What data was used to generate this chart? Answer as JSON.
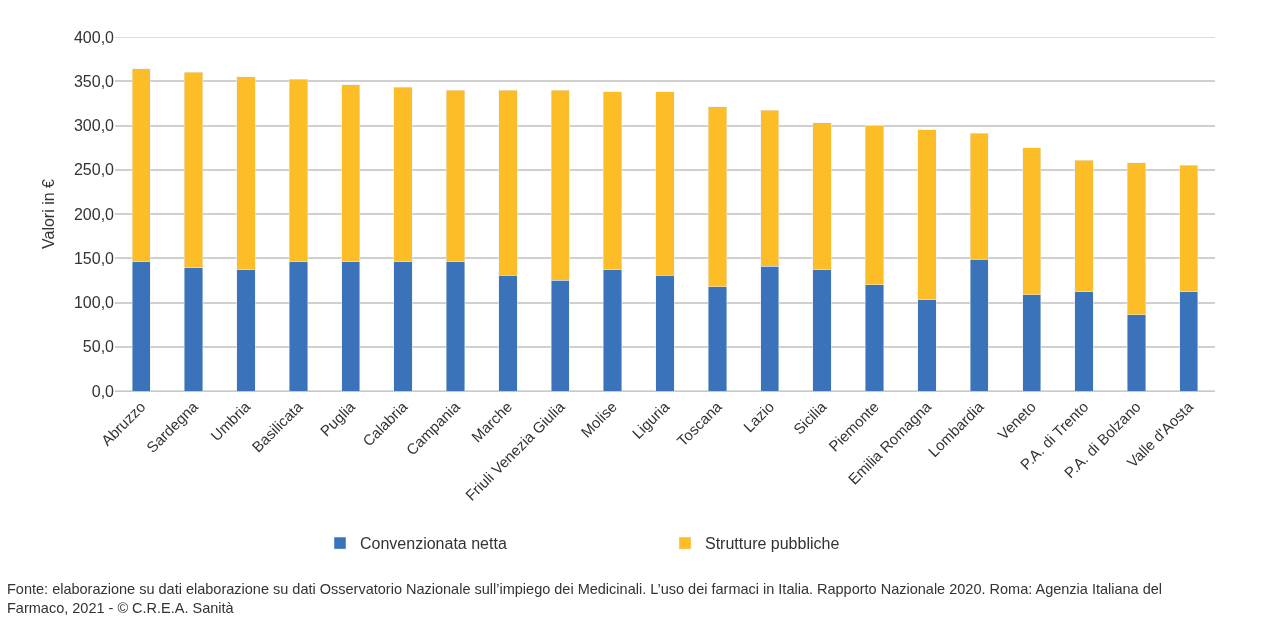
{
  "chart_data": {
    "type": "bar",
    "stacked": true,
    "ylabel": "Valori in €",
    "categories": [
      "Abruzzo",
      "Sardegna",
      "Umbria",
      "Basilicata",
      "Puglia",
      "Calabria",
      "Campania",
      "Marche",
      "Friuli Venezia Giulia",
      "Molise",
      "Liguria",
      "Toscana",
      "Lazio",
      "Sicilia",
      "Piemonte",
      "Emilia Romagna",
      "Lombardia",
      "Veneto",
      "P.A. di Trento",
      "P.A. di Bolzano",
      "Valle d'Aosta"
    ],
    "series": [
      {
        "name": "Convenzionata netta",
        "color": "#3a73b9",
        "values": [
          146,
          139,
          137,
          146,
          146,
          146,
          146,
          131,
          125,
          137,
          131,
          118,
          141,
          137,
          120,
          103,
          149,
          109,
          112,
          86,
          112
        ]
      },
      {
        "name": "Strutture pubbliche",
        "color": "#fdbd26",
        "values": [
          218,
          221,
          218,
          206,
          200,
          197,
          194,
          209,
          215,
          201,
          207,
          203,
          176,
          166,
          180,
          192,
          142,
          166,
          149,
          172,
          143
        ]
      }
    ],
    "ylim": [
      0,
      400
    ],
    "yticks": [
      {
        "value": 0,
        "label": "0,0"
      },
      {
        "value": 50,
        "label": "50,0"
      },
      {
        "value": 100,
        "label": "100,0"
      },
      {
        "value": 150,
        "label": "150,0"
      },
      {
        "value": 200,
        "label": "200,0"
      },
      {
        "value": 250,
        "label": "250,0"
      },
      {
        "value": 300,
        "label": "300,0"
      },
      {
        "value": 350,
        "label": "350,0"
      },
      {
        "value": 400,
        "label": "400,0"
      }
    ],
    "grid": "y",
    "legend": "bottom",
    "annotations": [
      "Fonte: elaborazione su dati elaborazione su dati Osservatorio Nazionale sull’impiego dei Medicinali. L’uso dei farmaci in Italia. Rapporto Nazionale 2020. Roma: Agenzia Italiana del Farmaco, 2021 - © C.R.E.A. Sanità"
    ]
  }
}
